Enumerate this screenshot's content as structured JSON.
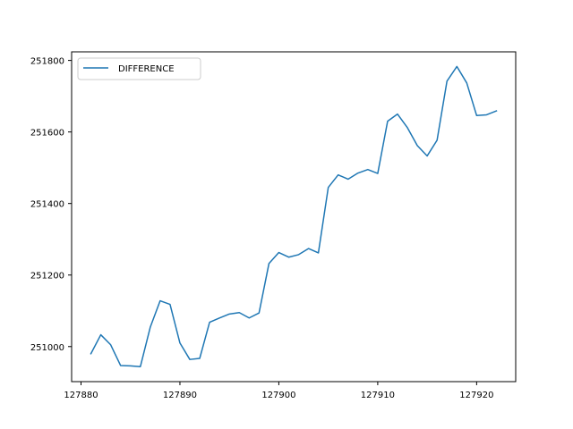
{
  "chart_data": {
    "type": "line",
    "title": "",
    "xlabel": "",
    "ylabel": "",
    "xlim": [
      127879.05,
      127923.95
    ],
    "ylim": [
      250902,
      251824
    ],
    "xticks": [
      127880,
      127890,
      127900,
      127910,
      127920
    ],
    "yticks": [
      251000,
      251200,
      251400,
      251600,
      251800
    ],
    "xtick_labels": [
      "127880",
      "127890",
      "127900",
      "127910",
      "127920"
    ],
    "ytick_labels": [
      "251000",
      "251200",
      "251400",
      "251600",
      "251800"
    ],
    "grid": false,
    "legend": {
      "position": "top-left",
      "entries": [
        "DIFFERENCE"
      ]
    },
    "colors": {
      "series": "#1f77b4"
    },
    "series": [
      {
        "name": "DIFFERENCE",
        "x": [
          127881,
          127882,
          127883,
          127884,
          127885,
          127886,
          127887,
          127888,
          127889,
          127890,
          127891,
          127892,
          127893,
          127894,
          127895,
          127896,
          127897,
          127898,
          127899,
          127900,
          127901,
          127902,
          127903,
          127904,
          127905,
          127906,
          127907,
          127908,
          127909,
          127910,
          127911,
          127912,
          127913,
          127914,
          127915,
          127916,
          127917,
          127918,
          127919,
          127920,
          127921,
          127922
        ],
        "y": [
          250980,
          251033,
          251005,
          250947,
          250946,
          250944,
          251054,
          251128,
          251118,
          251010,
          250964,
          250967,
          251068,
          251080,
          251091,
          251095,
          251080,
          251094,
          251232,
          251263,
          251250,
          251257,
          251274,
          251262,
          251445,
          251480,
          251468,
          251485,
          251495,
          251484,
          251630,
          251650,
          251612,
          251562,
          251533,
          251577,
          251742,
          251783,
          251737,
          251646,
          251648,
          251659
        ]
      }
    ]
  }
}
